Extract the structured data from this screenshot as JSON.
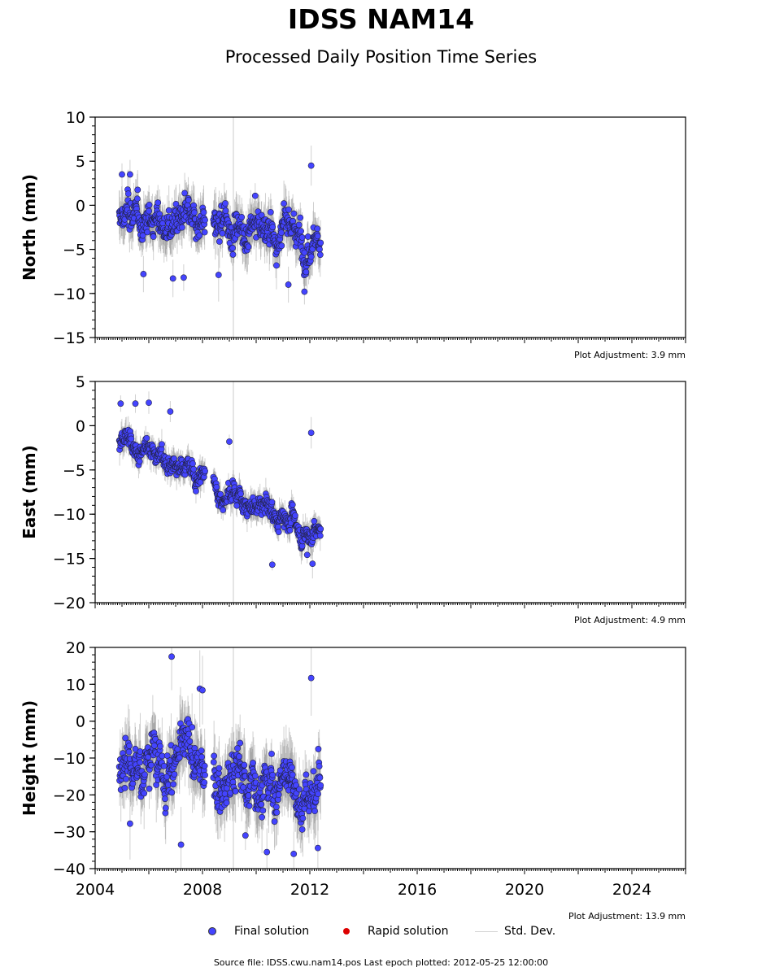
{
  "header": {
    "title": "IDSS NAM14",
    "subtitle": "Processed Daily Position Time Series"
  },
  "legend": {
    "final_label": "Final solution",
    "rapid_label": "Rapid solution",
    "std_label": "Std. Dev.",
    "final_color": "#4444ff",
    "rapid_color": "#dd0000",
    "std_color": "#d3d3d3"
  },
  "footer": {
    "source_text": "Source file: IDSS.cwu.nam14.pos  Last epoch plotted: 2012-05-25 12:00:00"
  },
  "chart_data": [
    {
      "type": "scatter",
      "ylabel": "North (mm)",
      "ylim": [
        -15,
        10
      ],
      "yticks": [
        10,
        5,
        0,
        -5,
        -10,
        -15
      ],
      "xlim": [
        2004.0,
        2026.0
      ],
      "xticks": [
        2004,
        2008,
        2012,
        2016,
        2020,
        2024
      ],
      "adjustment": "Plot Adjustment: 3.9 mm",
      "data_start": 2004.9,
      "data_end": 2012.4,
      "gap": [
        2008.1,
        2008.4
      ],
      "trend_start": -1.5,
      "trend_end": -3.5,
      "noise": 2.2,
      "outliers": [
        [
          2005.0,
          3.5
        ],
        [
          2005.3,
          3.5
        ],
        [
          2012.05,
          4.5
        ],
        [
          2011.8,
          -9.8
        ],
        [
          2011.2,
          -9.0
        ],
        [
          2007.3,
          -8.2
        ],
        [
          2006.9,
          -8.3
        ],
        [
          2008.6,
          -7.9
        ],
        [
          2005.8,
          -7.8
        ]
      ]
    },
    {
      "type": "scatter",
      "ylabel": "East (mm)",
      "ylim": [
        -20,
        5
      ],
      "yticks": [
        5,
        0,
        -5,
        -10,
        -15,
        -20
      ],
      "xlim": [
        2004.0,
        2026.0
      ],
      "xticks": [
        2004,
        2008,
        2012,
        2016,
        2020,
        2024
      ],
      "adjustment": "Plot Adjustment: 4.9 mm",
      "data_start": 2004.9,
      "data_end": 2012.4,
      "gap": [
        2008.1,
        2008.4
      ],
      "trend_start": -1.2,
      "trend_end": -12.5,
      "noise": 1.3,
      "outliers": [
        [
          2004.95,
          2.5
        ],
        [
          2005.5,
          2.5
        ],
        [
          2006.0,
          2.6
        ],
        [
          2006.8,
          1.6
        ],
        [
          2012.05,
          -0.8
        ],
        [
          2009.0,
          -1.8
        ],
        [
          2010.6,
          -15.7
        ],
        [
          2012.1,
          -15.6
        ],
        [
          2011.9,
          -14.6
        ]
      ]
    },
    {
      "type": "scatter",
      "ylabel": "Height (mm)",
      "ylim": [
        -40,
        20
      ],
      "yticks": [
        20,
        10,
        0,
        -10,
        -20,
        -30,
        -40
      ],
      "xlim": [
        2004.0,
        2026.0
      ],
      "xticks": [
        2004,
        2008,
        2012,
        2016,
        2020,
        2024
      ],
      "xticklabels": [
        "2004",
        "2008",
        "2012",
        "2016",
        "2020",
        "2024"
      ],
      "adjustment": "Plot Adjustment: 13.9 mm",
      "data_start": 2004.9,
      "data_end": 2012.4,
      "gap": [
        2008.1,
        2008.4
      ],
      "trend_start": -8.0,
      "trend_end": -20.0,
      "noise": 7.5,
      "outliers": [
        [
          2006.85,
          17.5
        ],
        [
          2012.05,
          11.7
        ],
        [
          2007.9,
          8.8
        ],
        [
          2008.0,
          8.4
        ],
        [
          2005.3,
          -27.8
        ],
        [
          2007.2,
          -33.5
        ],
        [
          2009.6,
          -31.0
        ],
        [
          2010.4,
          -35.5
        ],
        [
          2012.3,
          -34.4
        ],
        [
          2011.4,
          -36.0
        ]
      ]
    }
  ]
}
